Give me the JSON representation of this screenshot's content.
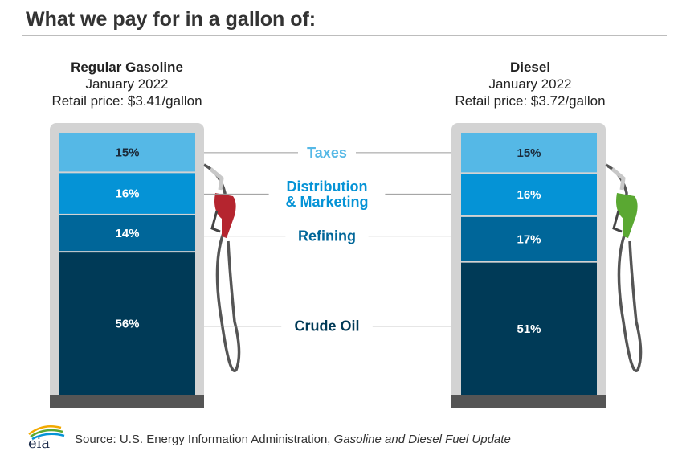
{
  "title": "What we pay for in a gallon of:",
  "colors": {
    "taxes": "#55b8e6",
    "distribution": "#0593d6",
    "refining": "#006699",
    "crude": "#003a57",
    "pump_frame": "#d3d3d3",
    "pump_base": "#555555",
    "nozzle_gasoline": "#b5252f",
    "nozzle_diesel": "#5aa832"
  },
  "source": {
    "prefix": "Source: U.S. Energy Information Administration, ",
    "publication": "Gasoline and Diesel Fuel Update",
    "logo_text": "eia"
  },
  "chart_data": {
    "type": "bar",
    "stacked": true,
    "categories": [
      "Regular Gasoline",
      "Diesel"
    ],
    "subtitles": [
      "January 2022",
      "January 2022"
    ],
    "retail_prices": [
      "Retail price: $3.41/gallon",
      "Retail price: $3.72/gallon"
    ],
    "series": [
      {
        "name": "Crude Oil",
        "color": "#003a57",
        "values": [
          56,
          51
        ],
        "labels": [
          "56%",
          "51%"
        ]
      },
      {
        "name": "Refining",
        "color": "#006699",
        "values": [
          14,
          17
        ],
        "labels": [
          "14%",
          "17%"
        ]
      },
      {
        "name": "Distribution & Marketing",
        "color": "#0593d6",
        "values": [
          16,
          16
        ],
        "labels": [
          "16%",
          "16%"
        ]
      },
      {
        "name": "Taxes",
        "color": "#55b8e6",
        "values": [
          15,
          15
        ],
        "labels": [
          "15%",
          "15%"
        ]
      }
    ],
    "center_labels": [
      {
        "series": "Taxes",
        "lines": [
          "Taxes"
        ],
        "color": "#55b8e6"
      },
      {
        "series": "Distribution & Marketing",
        "lines": [
          "Distribution",
          "& Marketing"
        ],
        "color": "#0593d6"
      },
      {
        "series": "Refining",
        "lines": [
          "Refining"
        ],
        "color": "#006699"
      },
      {
        "series": "Crude Oil",
        "lines": [
          "Crude Oil"
        ],
        "color": "#003a57"
      }
    ]
  }
}
